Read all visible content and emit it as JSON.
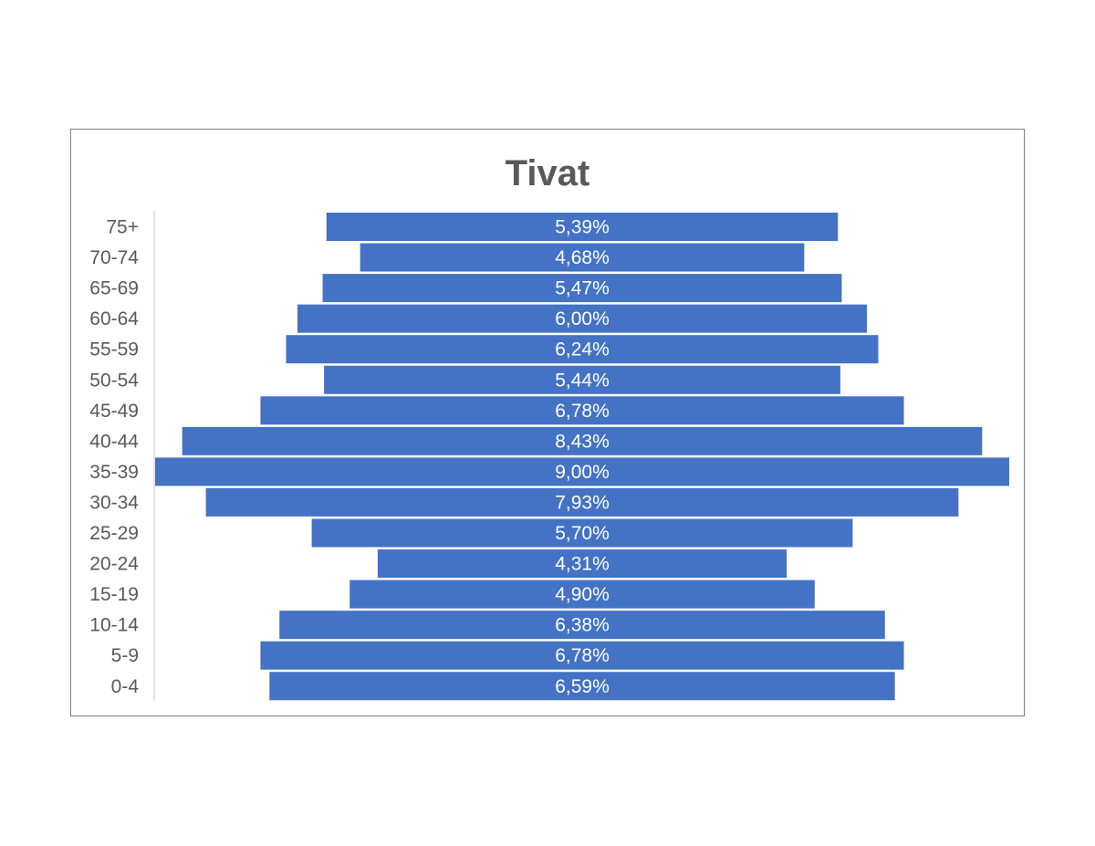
{
  "chart_data": {
    "type": "bar",
    "orientation": "horizontal-centered",
    "title": "Tivat",
    "categories": [
      "75+",
      "70-74",
      "65-69",
      "60-64",
      "55-59",
      "50-54",
      "45-49",
      "40-44",
      "35-39",
      "30-34",
      "25-29",
      "20-24",
      "15-19",
      "10-14",
      "5-9",
      "0-4"
    ],
    "values": [
      5.39,
      4.68,
      5.47,
      6.0,
      6.24,
      5.44,
      6.78,
      8.43,
      9.0,
      7.93,
      5.7,
      4.31,
      4.9,
      6.38,
      6.78,
      6.59
    ],
    "data_labels": [
      "5,39%",
      "4,68%",
      "5,47%",
      "6,00%",
      "6,24%",
      "5,44%",
      "6,78%",
      "8,43%",
      "9,00%",
      "7,93%",
      "5,70%",
      "4,31%",
      "4,90%",
      "6,38%",
      "6,78%",
      "6,59%"
    ],
    "xlabel": "",
    "ylabel": "",
    "grid": false,
    "legend": "none",
    "bar_color": "#4472C4",
    "label_color": "#ffffff"
  }
}
